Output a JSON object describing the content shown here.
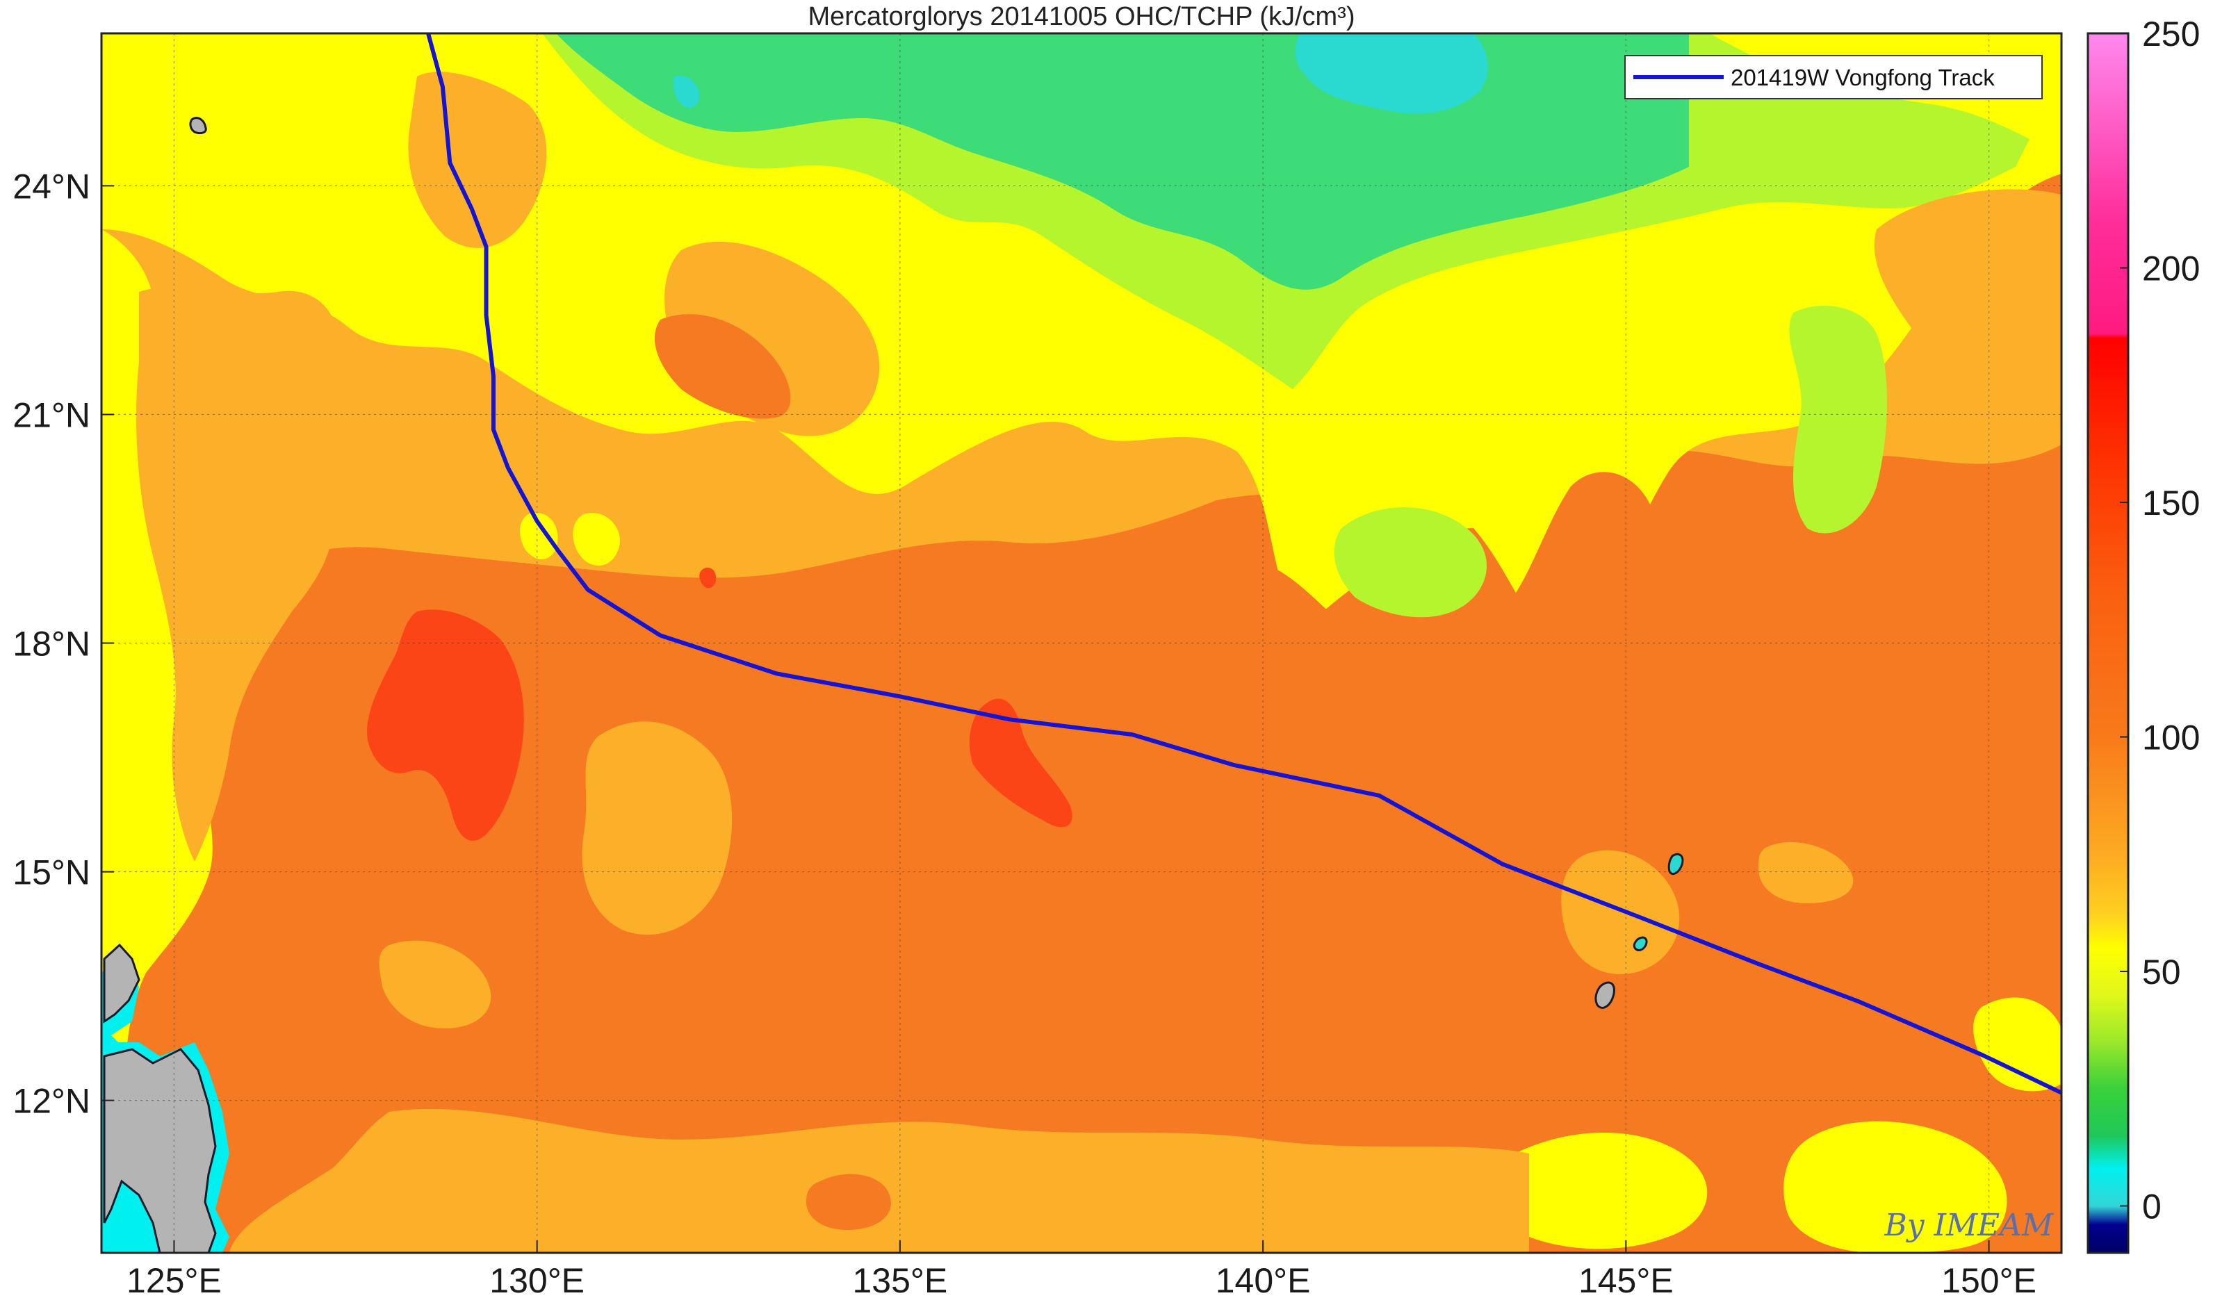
{
  "title": "Mercatorglorys 20141005 OHC/TCHP (kJ/cm³)",
  "credit": "By IMEAM",
  "map": {
    "lon_range": [
      124,
      151
    ],
    "lat_range": [
      10,
      26
    ],
    "lon_ticks": [
      "125°E",
      "130°E",
      "135°E",
      "140°E",
      "145°E",
      "150°E"
    ],
    "lat_ticks": [
      "24°N",
      "21°N",
      "18°N",
      "15°N",
      "12°N"
    ],
    "grid": true,
    "land_color": "#b4b4b4"
  },
  "legend": {
    "label": "201419W Vongfong Track",
    "line_color": "#1414d2",
    "placement": "top-right"
  },
  "track": {
    "name": "201419W Vongfong Track",
    "points": [
      [
        128.5,
        26.0
      ],
      [
        128.7,
        25.3
      ],
      [
        128.8,
        24.3
      ],
      [
        129.1,
        23.7
      ],
      [
        129.3,
        23.2
      ],
      [
        129.3,
        22.3
      ],
      [
        129.4,
        21.5
      ],
      [
        129.4,
        20.8
      ],
      [
        129.6,
        20.3
      ],
      [
        130.0,
        19.6
      ],
      [
        130.3,
        19.2
      ],
      [
        130.7,
        18.7
      ],
      [
        131.7,
        18.1
      ],
      [
        133.3,
        17.6
      ],
      [
        135.0,
        17.3
      ],
      [
        136.5,
        17.0
      ],
      [
        138.2,
        16.8
      ],
      [
        139.6,
        16.4
      ],
      [
        141.6,
        16.0
      ],
      [
        143.3,
        15.1
      ],
      [
        145.2,
        14.4
      ],
      [
        146.8,
        13.8
      ],
      [
        148.2,
        13.3
      ],
      [
        149.9,
        12.6
      ],
      [
        151.0,
        12.1
      ]
    ]
  },
  "colorbar": {
    "min": -10,
    "max": 250,
    "tick_labels": [
      "0",
      "50",
      "100",
      "150",
      "200",
      "250"
    ],
    "tick_values": [
      0,
      50,
      100,
      150,
      200,
      250
    ],
    "stops": [
      {
        "v": -10,
        "color": "#000066"
      },
      {
        "v": -4,
        "color": "#000090"
      },
      {
        "v": 0,
        "color": "#33d6d6"
      },
      {
        "v": 8,
        "color": "#00f0f0"
      },
      {
        "v": 15,
        "color": "#1ec85a"
      },
      {
        "v": 25,
        "color": "#3ad03a"
      },
      {
        "v": 35,
        "color": "#9be82a"
      },
      {
        "v": 45,
        "color": "#e0f81a"
      },
      {
        "v": 55,
        "color": "#ffff00"
      },
      {
        "v": 62,
        "color": "#ffd020"
      },
      {
        "v": 75,
        "color": "#fdaa22"
      },
      {
        "v": 100,
        "color": "#f87a1a"
      },
      {
        "v": 130,
        "color": "#fa6010"
      },
      {
        "v": 160,
        "color": "#ff3000"
      },
      {
        "v": 185,
        "color": "#ff0000"
      },
      {
        "v": 186,
        "color": "#ff1a80"
      },
      {
        "v": 210,
        "color": "#ff2d9a"
      },
      {
        "v": 250,
        "color": "#ff88ee"
      }
    ]
  },
  "ohc_colors": {
    "cyan": "#2ad9d0",
    "green": "#3ddc78",
    "lightgreen": "#b5f52e",
    "yellow": "#ffff00",
    "lightorange": "#fcb02a",
    "orange": "#f57a22",
    "red": "#fb4517"
  }
}
